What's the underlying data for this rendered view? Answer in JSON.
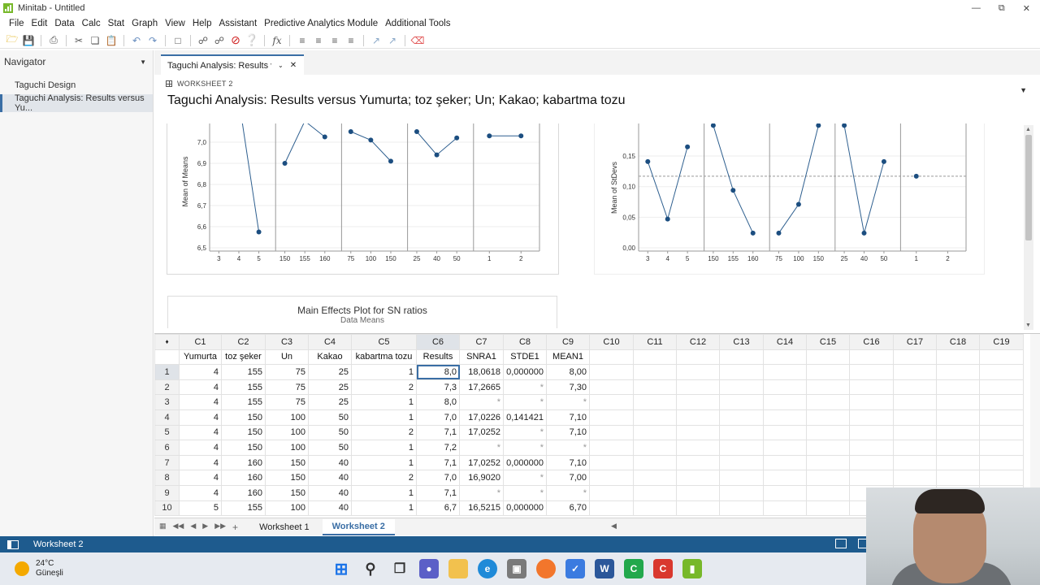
{
  "window": {
    "title": "Minitab - Untitled"
  },
  "menu": [
    "File",
    "Edit",
    "Data",
    "Calc",
    "Stat",
    "Graph",
    "View",
    "Help",
    "Assistant",
    "Predictive Analytics Module",
    "Additional Tools"
  ],
  "navigator": {
    "title": "Navigator",
    "items": [
      "Taguchi Design",
      "Taguchi Analysis: Results versus Yu..."
    ]
  },
  "doc_tab": {
    "label": "Taguchi Analysis: Results v..."
  },
  "output": {
    "worksheet_label": "WORKSHEET 2",
    "title": "Taguchi Analysis: Results versus Yumurta; toz şeker; Un; Kakao; kabartma tozu",
    "sn_plot_title": "Main Effects Plot for SN ratios",
    "sn_plot_subtitle": "Data Means"
  },
  "chart_data": [
    {
      "type": "line",
      "ylabel": "Mean of Means",
      "y_ticks": [
        "6,5",
        "6,6",
        "6,7",
        "6,8",
        "6,9",
        "7,0"
      ],
      "ylim": [
        6.5,
        7.05
      ],
      "panels": [
        {
          "x": [
            "3",
            "4",
            "5"
          ],
          "values": [
            null,
            7.2,
            6.575
          ]
        },
        {
          "x": [
            "150",
            "155",
            "160"
          ],
          "values": [
            6.9,
            7.1,
            7.025
          ]
        },
        {
          "x": [
            "75",
            "100",
            "150"
          ],
          "values": [
            7.05,
            7.01,
            6.91
          ]
        },
        {
          "x": [
            "25",
            "40",
            "50"
          ],
          "values": [
            7.05,
            6.94,
            7.02
          ]
        },
        {
          "x": [
            "1",
            "2"
          ],
          "values": [
            7.03,
            7.03
          ]
        }
      ]
    },
    {
      "type": "line",
      "ylabel": "Mean of StDevs",
      "y_ticks": [
        "0,00",
        "0,05",
        "0,10",
        "0,15"
      ],
      "ylim": [
        0,
        0.17
      ],
      "reference_line": 0.117,
      "panels": [
        {
          "x": [
            "3",
            "4",
            "5"
          ],
          "values": [
            0.141,
            0.047,
            0.165
          ]
        },
        {
          "x": [
            "150",
            "155",
            "160"
          ],
          "values": [
            0.2,
            0.094,
            0.024
          ]
        },
        {
          "x": [
            "75",
            "100",
            "150"
          ],
          "values": [
            0.024,
            0.071,
            0.2
          ]
        },
        {
          "x": [
            "25",
            "40",
            "50"
          ],
          "values": [
            0.2,
            0.024,
            0.141
          ]
        },
        {
          "x": [
            "1",
            "2"
          ],
          "values": [
            0.117,
            null
          ]
        }
      ]
    }
  ],
  "worksheet": {
    "columns": [
      "C1",
      "C2",
      "C3",
      "C4",
      "C5",
      "C6",
      "C7",
      "C8",
      "C9",
      "C10",
      "C11",
      "C12",
      "C13",
      "C14",
      "C15",
      "C16",
      "C17",
      "C18",
      "C19"
    ],
    "names": [
      "Yumurta",
      "toz şeker",
      "Un",
      "Kakao",
      "kabartma tozu",
      "Results",
      "SNRA1",
      "STDE1",
      "MEAN1",
      "",
      "",
      "",
      "",
      "",
      "",
      "",
      "",
      "",
      ""
    ],
    "rows": [
      [
        "1",
        "4",
        "155",
        "75",
        "25",
        "1",
        "8,0",
        "18,0618",
        "0,000000",
        "8,00"
      ],
      [
        "2",
        "4",
        "155",
        "75",
        "25",
        "2",
        "7,3",
        "17,2665",
        "*",
        "7,30"
      ],
      [
        "3",
        "4",
        "155",
        "75",
        "25",
        "1",
        "8,0",
        "*",
        "*",
        "*"
      ],
      [
        "4",
        "4",
        "150",
        "100",
        "50",
        "1",
        "7,0",
        "17,0226",
        "0,141421",
        "7,10"
      ],
      [
        "5",
        "4",
        "150",
        "100",
        "50",
        "2",
        "7,1",
        "17,0252",
        "*",
        "7,10"
      ],
      [
        "6",
        "4",
        "150",
        "100",
        "50",
        "1",
        "7,2",
        "*",
        "*",
        "*"
      ],
      [
        "7",
        "4",
        "160",
        "150",
        "40",
        "1",
        "7,1",
        "17,0252",
        "0,000000",
        "7,10"
      ],
      [
        "8",
        "4",
        "160",
        "150",
        "40",
        "2",
        "7,0",
        "16,9020",
        "*",
        "7,00"
      ],
      [
        "9",
        "4",
        "160",
        "150",
        "40",
        "1",
        "7,1",
        "*",
        "*",
        "*"
      ],
      [
        "10",
        "5",
        "155",
        "100",
        "40",
        "1",
        "6,7",
        "16,5215",
        "0,000000",
        "6,70"
      ]
    ]
  },
  "sheet_tabs": [
    "Worksheet 1",
    "Worksheet 2"
  ],
  "status": {
    "text": "Worksheet 2"
  },
  "taskbar": {
    "temperature": "24°C",
    "weather": "Güneşli"
  }
}
